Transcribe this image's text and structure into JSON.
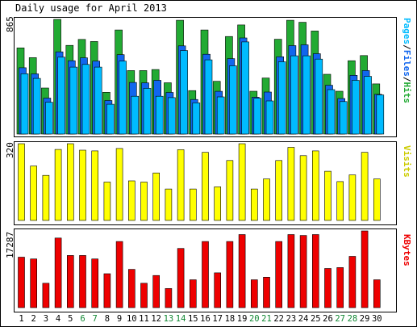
{
  "title": "Daily usage for April 2013",
  "colors": {
    "hits": "#22aa33",
    "files": "#1166ee",
    "pages": "#00bbff",
    "visits": "#ffff00",
    "kbytes": "#ee0000",
    "weekday_label": "#000000",
    "weekend_label": "#118833"
  },
  "chart_data": {
    "type": "bar",
    "categories": [
      "1",
      "2",
      "3",
      "4",
      "5",
      "6",
      "7",
      "8",
      "9",
      "10",
      "11",
      "12",
      "13",
      "14",
      "15",
      "16",
      "17",
      "18",
      "19",
      "20",
      "21",
      "22",
      "23",
      "24",
      "25",
      "26",
      "27",
      "28",
      "29",
      "30"
    ],
    "weekend_days": [
      "6",
      "7",
      "13",
      "14",
      "20",
      "21",
      "27",
      "28"
    ],
    "panels": [
      {
        "id": "usage",
        "ymax_label": "865",
        "ylim": [
          0,
          865
        ],
        "axis_label_parts": [
          {
            "text": "Pages",
            "color": "#00bbff"
          },
          {
            "text": "/",
            "color": "#000000"
          },
          {
            "text": "Files",
            "color": "#1166ee"
          },
          {
            "text": "/",
            "color": "#000000"
          },
          {
            "text": "Hits",
            "color": "#22aa33"
          }
        ],
        "series": [
          {
            "name": "Hits",
            "color": "#22aa33",
            "values": [
              650,
              576,
              347,
              865,
              669,
              714,
              698,
              315,
              785,
              479,
              479,
              487,
              387,
              858,
              328,
              785,
              398,
              736,
              823,
              323,
              423,
              715,
              858,
              843,
              777,
              451,
              323,
              553,
              592,
              378
            ]
          },
          {
            "name": "Files",
            "color": "#1166ee",
            "values": [
              500,
              454,
              271,
              620,
              553,
              575,
              550,
              253,
              599,
              389,
              386,
              405,
              314,
              665,
              261,
              602,
              322,
              569,
              725,
              278,
              317,
              583,
              667,
              673,
              606,
              368,
              268,
              443,
              479,
              300
            ]
          },
          {
            "name": "Pages",
            "color": "#00bbff",
            "values": [
              455,
              420,
              240,
              580,
              505,
              525,
              505,
              225,
              550,
              285,
              345,
              285,
              275,
              630,
              235,
              560,
              280,
              515,
              695,
              270,
              250,
              545,
              590,
              590,
              565,
              335,
              245,
              405,
              435,
              295
            ]
          }
        ]
      },
      {
        "id": "visits",
        "ymax_label": "320",
        "ylim": [
          0,
          320
        ],
        "axis_label_parts": [
          {
            "text": "Visits",
            "color": "#cccc00"
          }
        ],
        "series": [
          {
            "name": "Visits",
            "color": "#ffff00",
            "values": [
              320,
              227,
              188,
              296,
              320,
              293,
              290,
              160,
              300,
              165,
              160,
              198,
              131,
              295,
              131,
              284,
              140,
              250,
              320,
              131,
              173,
              250,
              305,
              270,
              290,
              205,
              162,
              190,
              284,
              173
            ]
          }
        ]
      },
      {
        "id": "kbytes",
        "ymax_label": "17287",
        "ylim": [
          0,
          17287
        ],
        "axis_label_parts": [
          {
            "text": "KBytes",
            "color": "#ee0000"
          }
        ],
        "series": [
          {
            "name": "KBytes",
            "color": "#ee0000",
            "values": [
              11370,
              10980,
              5490,
              15690,
              11760,
              11760,
              10980,
              7640,
              14900,
              8620,
              5490,
              7250,
              4310,
              13330,
              6270,
              14900,
              7840,
              14900,
              16470,
              6270,
              6860,
              14900,
              16470,
              16270,
              16470,
              8820,
              9020,
              11560,
              17287,
              6270
            ]
          }
        ]
      }
    ]
  }
}
